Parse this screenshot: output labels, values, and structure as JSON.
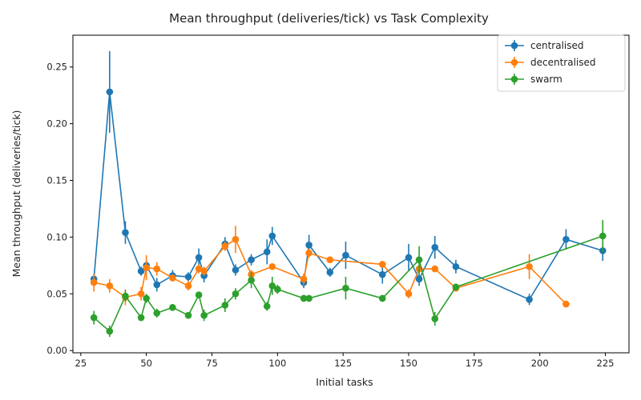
{
  "chart_data": {
    "type": "line",
    "title": "Mean throughput (deliveries/tick) vs Task Complexity",
    "xlabel": "Initial tasks",
    "ylabel": "Mean throughput (deliveries/tick)",
    "xlim": [
      22,
      234
    ],
    "ylim": [
      -0.002,
      0.278
    ],
    "xticks": [
      25,
      50,
      75,
      100,
      125,
      150,
      175,
      200,
      225
    ],
    "xtick_labels": [
      "25",
      "50",
      "75",
      "100",
      "125",
      "150",
      "175",
      "200",
      "225"
    ],
    "yticks": [
      0.0,
      0.05,
      0.1,
      0.15,
      0.2,
      0.25
    ],
    "ytick_labels": [
      "0.00",
      "0.05",
      "0.10",
      "0.15",
      "0.20",
      "0.25"
    ],
    "grid": false,
    "legend_position": "top-right",
    "error_bars": true,
    "series": [
      {
        "name": "centralised",
        "color": "#1f77b4",
        "x": [
          30,
          36,
          42,
          48,
          50,
          54,
          60,
          66,
          70,
          72,
          80,
          84,
          90,
          96,
          98,
          110,
          112,
          120,
          126,
          140,
          150,
          154,
          160,
          168,
          196,
          210,
          224
        ],
        "y": [
          0.063,
          0.228,
          0.104,
          0.07,
          0.075,
          0.058,
          0.066,
          0.065,
          0.082,
          0.066,
          0.094,
          0.071,
          0.08,
          0.087,
          0.101,
          0.06,
          0.093,
          0.069,
          0.084,
          0.067,
          0.082,
          0.063,
          0.091,
          0.074,
          0.045,
          0.098,
          0.088
        ],
        "err": [
          0.004,
          0.036,
          0.01,
          0.004,
          0.005,
          0.006,
          0.005,
          0.004,
          0.008,
          0.006,
          0.006,
          0.005,
          0.005,
          0.011,
          0.008,
          0.005,
          0.009,
          0.004,
          0.012,
          0.008,
          0.012,
          0.006,
          0.01,
          0.006,
          0.005,
          0.009,
          0.009
        ]
      },
      {
        "name": "decentralised",
        "color": "#ff7f0e",
        "x": [
          30,
          36,
          42,
          48,
          50,
          54,
          60,
          66,
          70,
          72,
          80,
          84,
          90,
          98,
          110,
          112,
          120,
          140,
          150,
          154,
          160,
          168,
          196,
          210
        ],
        "y": [
          0.06,
          0.057,
          0.047,
          0.05,
          0.073,
          0.072,
          0.064,
          0.057,
          0.072,
          0.07,
          0.092,
          0.098,
          0.067,
          0.074,
          0.063,
          0.086,
          0.08,
          0.076,
          0.05,
          0.072,
          0.072,
          0.055,
          0.074,
          0.041
        ],
        "err": [
          0.008,
          0.006,
          0.007,
          0.006,
          0.011,
          0.006,
          0.003,
          0.004,
          0.004,
          0.004,
          0.004,
          0.012,
          0.004,
          0.002,
          0.005,
          0.004,
          0.002,
          0.002,
          0.004,
          0.002,
          0.002,
          0.003,
          0.011,
          0.002
        ]
      },
      {
        "name": "swarm",
        "color": "#2ca02c",
        "x": [
          30,
          36,
          42,
          48,
          50,
          54,
          60,
          66,
          70,
          72,
          80,
          84,
          90,
          96,
          98,
          100,
          110,
          112,
          126,
          140,
          154,
          160,
          168,
          224
        ],
        "y": [
          0.029,
          0.017,
          0.048,
          0.029,
          0.046,
          0.033,
          0.038,
          0.031,
          0.049,
          0.031,
          0.04,
          0.05,
          0.062,
          0.039,
          0.057,
          0.054,
          0.046,
          0.046,
          0.055,
          0.046,
          0.08,
          0.028,
          0.056,
          0.101
        ],
        "err": [
          0.006,
          0.005,
          0.005,
          0.002,
          0.004,
          0.004,
          0.003,
          0.002,
          0.003,
          0.005,
          0.006,
          0.005,
          0.007,
          0.004,
          0.008,
          0.004,
          0.003,
          0.002,
          0.01,
          0.003,
          0.012,
          0.006,
          0.003,
          0.014
        ]
      }
    ]
  }
}
